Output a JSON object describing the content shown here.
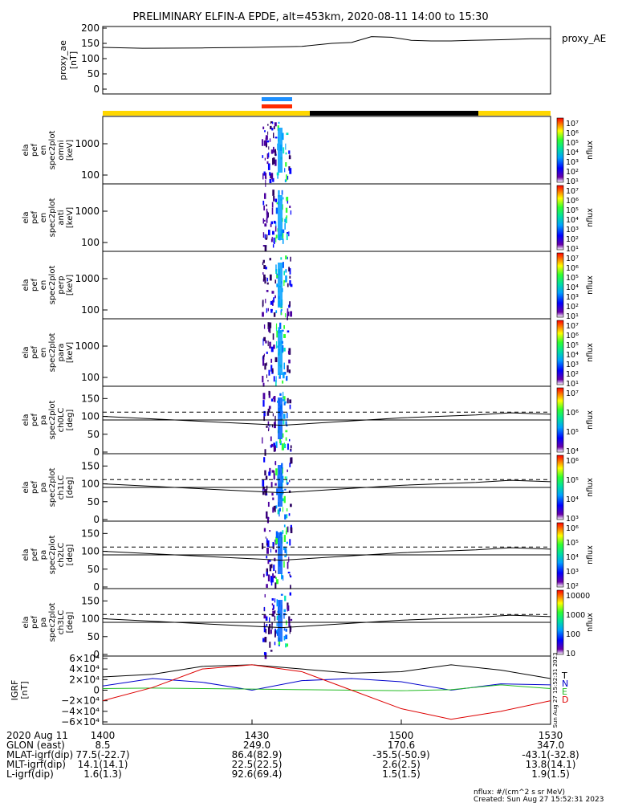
{
  "title": "PRELIMINARY ELFIN-A EPDE, alt=453km, 2020-08-11 14:00 to 15:30",
  "proxy_panel": {
    "ylabel": [
      "proxy_ae",
      "[nT]"
    ],
    "yticks": [
      "200",
      "150",
      "100",
      "50",
      "0"
    ],
    "legend": "proxy_AE"
  },
  "colors": {
    "orbit_bar_yellow": "#FFD700",
    "orbit_bar_black": "#000000",
    "science_zone_blue": "#1E90FF",
    "science_zone_red": "#FF2A00",
    "T_trace": "#000000",
    "N_trace": "#0000CC",
    "E_trace": "#22BB22",
    "D_trace": "#DD0000"
  },
  "panels": [
    {
      "ylabel": [
        "ela",
        "pef",
        "en",
        "spec2plot",
        "omni",
        "[keV]"
      ],
      "yticks": [
        "1000",
        "100"
      ],
      "cbar_ticks": [
        "10⁷",
        "10⁶",
        "10⁵",
        "10⁴",
        "10³",
        "10²",
        "10¹"
      ],
      "cbar_label": "nflux"
    },
    {
      "ylabel": [
        "ela",
        "pef",
        "en",
        "spec2plot",
        "anti",
        "[keV]"
      ],
      "yticks": [
        "1000",
        "100"
      ],
      "cbar_ticks": [
        "10⁷",
        "10⁶",
        "10⁵",
        "10⁴",
        "10³",
        "10²",
        "10¹"
      ],
      "cbar_label": "nflux"
    },
    {
      "ylabel": [
        "ela",
        "pef",
        "en",
        "spec2plot",
        "perp",
        "[keV]"
      ],
      "yticks": [
        "1000",
        "100"
      ],
      "cbar_ticks": [
        "10⁷",
        "10⁶",
        "10⁵",
        "10⁴",
        "10³",
        "10²",
        "10¹"
      ],
      "cbar_label": "nflux"
    },
    {
      "ylabel": [
        "ela",
        "pef",
        "en",
        "spec2plot",
        "para",
        "[keV]"
      ],
      "yticks": [
        "1000",
        "100"
      ],
      "cbar_ticks": [
        "10⁷",
        "10⁶",
        "10⁵",
        "10⁴",
        "10³",
        "10²",
        "10¹"
      ],
      "cbar_label": "nflux"
    },
    {
      "ylabel": [
        "ela",
        "pef",
        "pa",
        "spec2plot",
        "ch0LC",
        "[deg]"
      ],
      "yticks": [
        "150",
        "100",
        "50",
        "0"
      ],
      "cbar_ticks": [
        "10⁷",
        "10⁶",
        "10⁵",
        "10⁴"
      ],
      "cbar_label": "nflux"
    },
    {
      "ylabel": [
        "ela",
        "pef",
        "pa",
        "spec2plot",
        "ch1LC",
        "[deg]"
      ],
      "yticks": [
        "150",
        "100",
        "50",
        "0"
      ],
      "cbar_ticks": [
        "10⁶",
        "10⁵",
        "10⁴",
        "10³"
      ],
      "cbar_label": "nflux"
    },
    {
      "ylabel": [
        "ela",
        "pef",
        "pa",
        "spec2plot",
        "ch2LC",
        "[deg]"
      ],
      "yticks": [
        "150",
        "100",
        "50",
        "0"
      ],
      "cbar_ticks": [
        "10⁶",
        "10⁵",
        "10⁴",
        "10³",
        "10²"
      ],
      "cbar_label": "nflux"
    },
    {
      "ylabel": [
        "ela",
        "pef",
        "pa",
        "spec2plot",
        "ch3LC",
        "[deg]"
      ],
      "yticks": [
        "150",
        "100",
        "50",
        "0"
      ],
      "cbar_ticks": [
        "10000",
        "1000",
        "100",
        "10"
      ],
      "cbar_label": "nflux"
    }
  ],
  "igrf_panel": {
    "ylabel": [
      "IGRF",
      "[nT]"
    ],
    "yticks": [
      "6×10⁴",
      "4×10⁴",
      "2×10⁴",
      "0",
      "−2×10⁴",
      "−4×10⁴",
      "−6×10⁴"
    ],
    "legend": [
      "T",
      "N",
      "E",
      "D"
    ],
    "stamp": "Sun Aug 27 15:52:31 2023"
  },
  "footer": {
    "rows": [
      [
        "2020 Aug 11",
        "1400",
        "1430",
        "1500",
        "1530"
      ],
      [
        "GLON (east)",
        "8.5",
        "249.0",
        "170.6",
        "347.0"
      ],
      [
        "MLAT-igrf(dip)",
        "77.5(-22.7)",
        "86.4(82.9)",
        "-35.5(-50.9)",
        "-43.1(-32.8)"
      ],
      [
        "MLT-igrf(dip)",
        "14.1(14.1)",
        "22.5(22.5)",
        "2.6(2.5)",
        "13.8(14.1)"
      ],
      [
        "L-igrf(dip)",
        "1.6(1.3)",
        "92.6(69.4)",
        "1.5(1.5)",
        "1.9(1.5)"
      ]
    ],
    "note1": "nflux: #/(cm^2 s sr MeV)",
    "note2": "Created: Sun Aug 27 15:52:31 2023"
  },
  "chart_data": [
    {
      "type": "line",
      "ylabel": "proxy_ae [nT]",
      "ylim": [
        0,
        200
      ],
      "xlim_minutes": [
        0,
        90
      ],
      "series": [
        {
          "name": "proxy_AE",
          "x": [
            0,
            8,
            20,
            30,
            40,
            46,
            50,
            54,
            58,
            62,
            66,
            70,
            74,
            80,
            86,
            90
          ],
          "y": [
            137,
            134,
            135,
            137,
            140,
            150,
            153,
            172,
            170,
            160,
            158,
            158,
            160,
            162,
            165,
            165
          ]
        }
      ]
    },
    {
      "type": "line",
      "ylabel": "ch LC [deg]",
      "ylim": [
        0,
        180
      ],
      "xlim_minutes": [
        0,
        90
      ],
      "series": [
        {
          "name": "loss cone",
          "x": [
            0,
            36,
            53,
            60,
            75,
            82,
            90
          ],
          "y": [
            100,
            75,
            90,
            96,
            104,
            110,
            106
          ]
        },
        {
          "name": "anti loss cone",
          "x": [
            0,
            90
          ],
          "y": [
            112,
            112
          ]
        },
        {
          "name": "90 deg",
          "x": [
            0,
            90
          ],
          "y": [
            90,
            90
          ]
        }
      ]
    },
    {
      "type": "line",
      "ylabel": "IGRF [nT]",
      "ylim": [
        -60000,
        60000
      ],
      "xlim_minutes": [
        0,
        90
      ],
      "series": [
        {
          "name": "T",
          "x": [
            0,
            10,
            20,
            30,
            40,
            50,
            60,
            70,
            80,
            90
          ],
          "y": [
            25000,
            30000,
            45000,
            48000,
            40000,
            32000,
            35000,
            48000,
            38000,
            22000
          ]
        },
        {
          "name": "N",
          "x": [
            0,
            10,
            20,
            30,
            40,
            50,
            60,
            70,
            80,
            90
          ],
          "y": [
            8000,
            22000,
            15000,
            0,
            18000,
            22000,
            16000,
            0,
            12000,
            10000
          ]
        },
        {
          "name": "E",
          "x": [
            0,
            10,
            20,
            30,
            40,
            50,
            60,
            70,
            80,
            90
          ],
          "y": [
            3000,
            4000,
            3000,
            2000,
            1000,
            0,
            -1000,
            1000,
            10000,
            3000
          ]
        },
        {
          "name": "D",
          "x": [
            0,
            10,
            20,
            30,
            40,
            50,
            60,
            70,
            80,
            90
          ],
          "y": [
            -20000,
            5000,
            40000,
            48000,
            35000,
            0,
            -35000,
            -55000,
            -40000,
            -20000
          ]
        }
      ]
    }
  ]
}
